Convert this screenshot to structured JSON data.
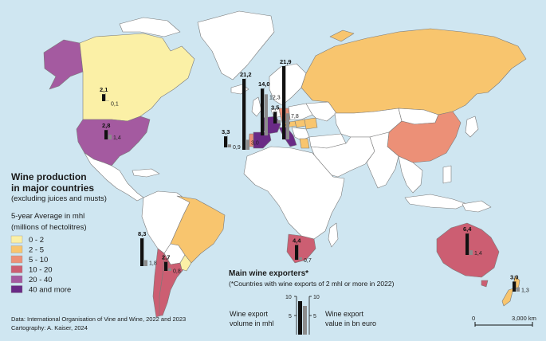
{
  "colors": {
    "ocean": "#cfe6f1",
    "land_nodata": "#ffffff",
    "border": "#7a7a7a",
    "bar_volume": "#111111",
    "bar_value": "#8c8c8c",
    "classes": [
      "#fbf0a6",
      "#f8c56e",
      "#ec9077",
      "#cc5e72",
      "#a45aa0",
      "#6a2a86"
    ]
  },
  "legend": {
    "title_line1": "Wine production",
    "title_line2": "in major countries",
    "subtitle": "(excluding juices and musts)",
    "measure": "5-year Average in mhl",
    "measure_note": "(millions of hectolitres)",
    "classes": [
      "0 - 2",
      "2 - 5",
      "5 - 10",
      "10 - 20",
      "20 - 40",
      "40 and more"
    ]
  },
  "exporters": {
    "title": "Main wine exporters*",
    "note": "(*Countries with wine exports of 2 mhl or more in 2022)",
    "volume_label_1": "Wine export",
    "volume_label_2": "volume in mhl",
    "value_label_1": "Wine export",
    "value_label_2": "value in bn euro",
    "scale_volume": [
      "10",
      "5"
    ],
    "scale_value": [
      "10",
      "5"
    ]
  },
  "country_class": {
    "canada": 0,
    "usa": 4,
    "brazil": 1,
    "chile": 3,
    "argentina": 3,
    "uruguay": 0,
    "spain": 5,
    "france": 5,
    "italy": 5,
    "portugal": 2,
    "germany": 2,
    "russia": 1,
    "romania": 1,
    "china": 2,
    "south_africa": 3,
    "australia": 3,
    "new_zealand": 1,
    "greece": 1,
    "hungary": 1,
    "austria": 1,
    "moldova": 1
  },
  "exporter_bars": [
    {
      "name": "Canada",
      "volume": "2,1",
      "value": "0,1",
      "v": 2.1,
      "e": 0.1
    },
    {
      "name": "USA",
      "volume": "2,8",
      "value": "1,4",
      "v": 2.8,
      "e": 1.4
    },
    {
      "name": "Portugal",
      "volume": "3,3",
      "value": "0,9",
      "v": 3.3,
      "e": 0.9
    },
    {
      "name": "Spain",
      "volume": "21,2",
      "value": "3,0",
      "v": 21.2,
      "e": 3.0
    },
    {
      "name": "France",
      "volume": "14,0",
      "value": "12,3",
      "v": 14.0,
      "e": 12.3
    },
    {
      "name": "Germany",
      "volume": "3,5",
      "value": "1,0",
      "v": 3.5,
      "e": 1.0
    },
    {
      "name": "Italy",
      "volume": "21,9",
      "value": "7,8",
      "v": 21.9,
      "e": 7.8
    },
    {
      "name": "Chile",
      "volume": "8,3",
      "value": "1,8",
      "v": 8.3,
      "e": 1.8
    },
    {
      "name": "Argentina",
      "volume": "2,7",
      "value": "0,8",
      "v": 2.7,
      "e": 0.8
    },
    {
      "name": "South Africa",
      "volume": "4,4",
      "value": "0,7",
      "v": 4.4,
      "e": 0.7
    },
    {
      "name": "Australia",
      "volume": "6,4",
      "value": "1,4",
      "v": 6.4,
      "e": 1.4
    },
    {
      "name": "New Zealand",
      "volume": "3,0",
      "value": "1,3",
      "v": 3.0,
      "e": 1.3
    }
  ],
  "scale_bar": {
    "start": "0",
    "end": "3,000 km"
  },
  "source_1": "Data: International Organisation of Vine and Wine, 2022 and 2023",
  "source_2": "Cartography: A. Kaiser, 2024"
}
